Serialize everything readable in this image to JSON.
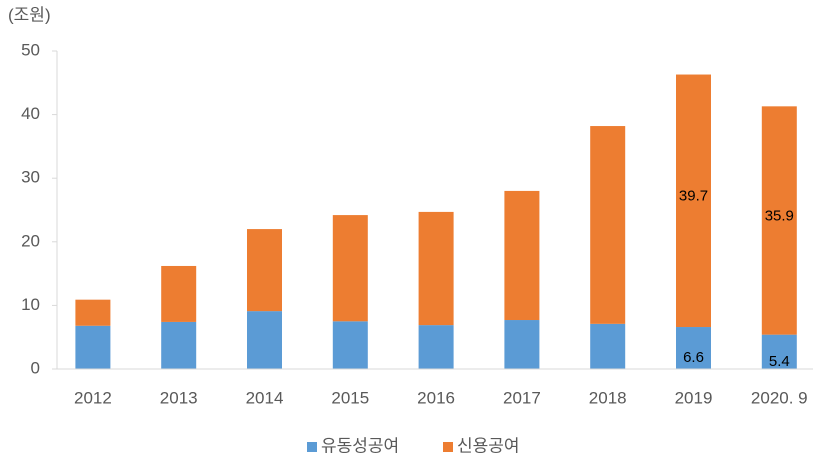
{
  "chart_data": {
    "type": "stacked_bar",
    "unit_label": "(조원)",
    "categories": [
      "2012",
      "2013",
      "2014",
      "2015",
      "2016",
      "2017",
      "2018",
      "2019",
      "2020. 9"
    ],
    "series": [
      {
        "name": "유동성공여",
        "color": "#5b9bd5",
        "values": [
          6.8,
          7.4,
          9.1,
          7.5,
          6.9,
          7.7,
          7.1,
          6.6,
          5.4
        ],
        "value_labels": [
          null,
          null,
          null,
          null,
          null,
          null,
          null,
          "6.6",
          "5.4"
        ]
      },
      {
        "name": "신용공여",
        "color": "#ed7d31",
        "values": [
          4.1,
          8.8,
          12.9,
          16.7,
          17.8,
          20.3,
          31.1,
          39.7,
          35.9
        ],
        "value_labels": [
          null,
          null,
          null,
          null,
          null,
          null,
          null,
          "39.7",
          "35.9"
        ]
      }
    ],
    "ylim": [
      0,
      50
    ],
    "yticks": [
      0,
      10,
      20,
      30,
      40,
      50
    ],
    "grid": false,
    "legend": "bottom"
  }
}
